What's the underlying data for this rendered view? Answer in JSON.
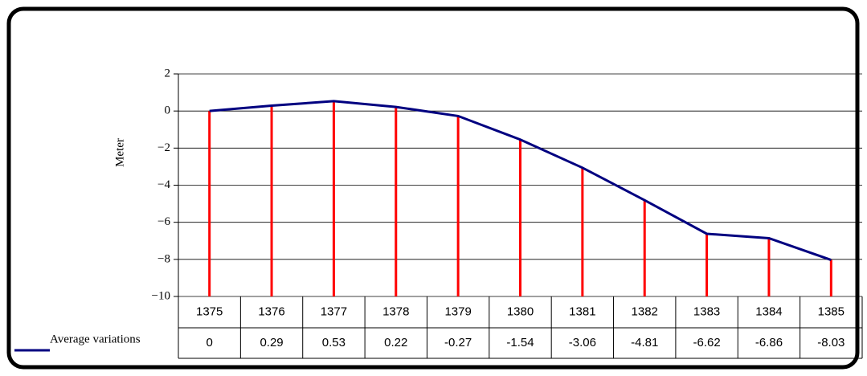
{
  "chart_data": {
    "type": "line",
    "y_label": "Meter",
    "categories": [
      "1375",
      "1376",
      "1377",
      "1378",
      "1379",
      "1380",
      "1381",
      "1382",
      "1383",
      "1384",
      "1385"
    ],
    "series": [
      {
        "name": "Average variations",
        "color": "#000080",
        "stem_color": "#ff0000",
        "values": [
          0,
          0.29,
          0.53,
          0.22,
          -0.27,
          -1.54,
          -3.06,
          -4.81,
          -6.62,
          -6.86,
          -8.03
        ]
      }
    ],
    "ylim": [
      -10,
      2
    ],
    "yticks": [
      {
        "value": -10,
        "label": "−10"
      },
      {
        "value": -8,
        "label": "−8"
      },
      {
        "value": -6,
        "label": "−6"
      },
      {
        "value": -4,
        "label": "−4"
      },
      {
        "value": -2,
        "label": "−2"
      },
      0,
      2
    ],
    "grid": true
  }
}
